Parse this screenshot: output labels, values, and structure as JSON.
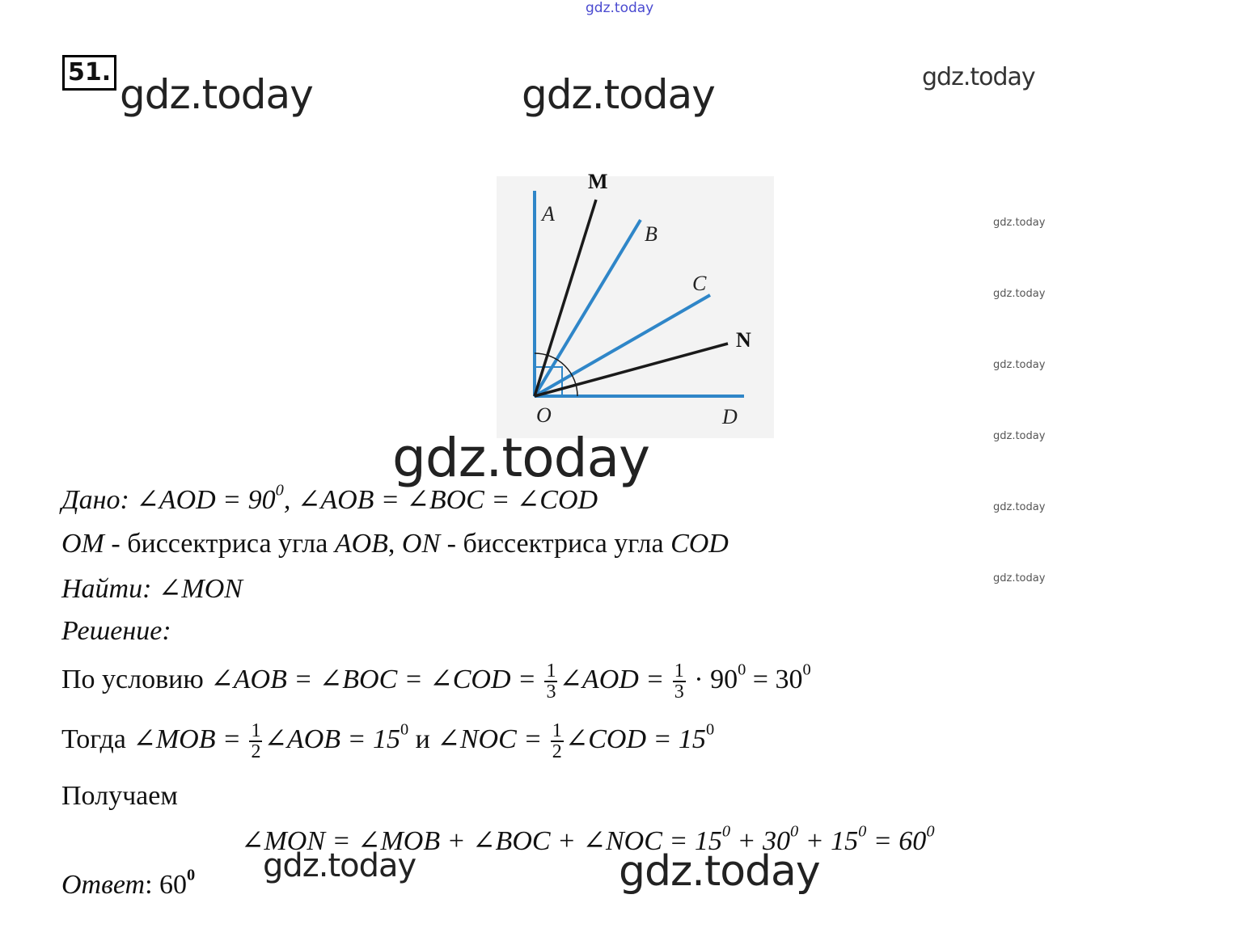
{
  "watermark": "gdz.today",
  "problem_number": "51.",
  "diagram": {
    "labels": {
      "A": "A",
      "B": "B",
      "C": "C",
      "D": "D",
      "O": "O",
      "M": "M",
      "N": "N"
    },
    "colors": {
      "blue_rays": "#2f86c8",
      "black_rays": "#1a1a1a",
      "background": "#f3f3f3"
    }
  },
  "given": {
    "label": "Дано",
    "text1": ": ∠AOD = 90",
    "sup1": "0",
    "text2": ", ∠AOB  = ∠BOC = ∠COD"
  },
  "bisectors": {
    "om": "OM",
    "t1": " - биссектриса угла ",
    "aob": "AOB",
    "comma": ", ",
    "on": "ON",
    "t2": " - биссектриса угла ",
    "cod": "COD"
  },
  "find": {
    "label": "Найти",
    "text": ": ∠MON"
  },
  "solution": {
    "label": "Решение",
    "colon": ":"
  },
  "step1": {
    "prefix": "По условию ",
    "expr1": "∠AOB  = ∠BOC = ∠COD = ",
    "frac_n": "1",
    "frac_d": "3",
    "expr2": "∠AOD = ",
    "frac2_n": "1",
    "frac2_d": "3",
    "expr3": " · 90",
    "sup1": "0",
    "expr4": " = 30",
    "sup2": "0"
  },
  "step2": {
    "prefix": "Тогда ",
    "expr1": "∠MOB = ",
    "frac_n": "1",
    "frac_d": "2",
    "expr2": "∠AOB = 15",
    "sup1": "0",
    "mid": " и ",
    "expr3": "∠NOC = ",
    "frac2_n": "1",
    "frac2_d": "2",
    "expr4": "∠COD = 15",
    "sup2": "0"
  },
  "step3": {
    "text": "Получаем"
  },
  "final": {
    "e1": "∠MON = ∠MOB + ∠BOC + ∠NOC = 15",
    "s1": "0",
    "e2": " + 30",
    "s2": "0",
    "e3": " + 15",
    "s3": "0",
    "e4": " = 60",
    "s4": "0"
  },
  "answer": {
    "label": "Ответ",
    "colon": ":",
    "value": " 60",
    "sup": "0"
  }
}
